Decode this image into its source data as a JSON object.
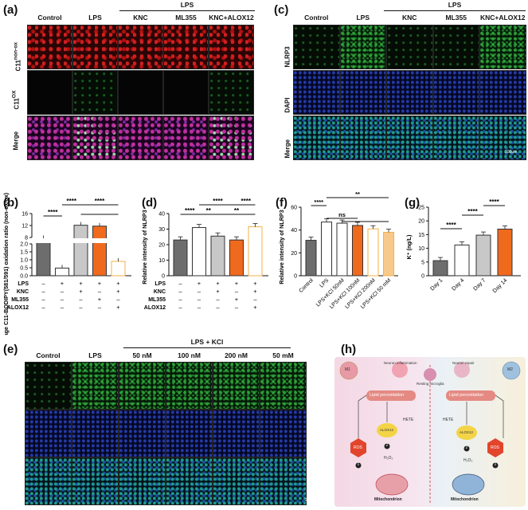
{
  "panels": {
    "a": {
      "label": "(a)",
      "group_header": "LPS",
      "columns": [
        "Control",
        "LPS",
        "KNC",
        "ML355",
        "KNC+ALOX12"
      ],
      "row_c11_base": "C11",
      "row_c11_sup1": "non-ox",
      "row_c11_sup2": "OX",
      "row3": "Merge"
    },
    "c": {
      "label": "(c)",
      "group_header": "LPS",
      "columns": [
        "Control",
        "LPS",
        "KNC",
        "ML355",
        "KNC+ALOX12"
      ],
      "rows": [
        "NLRP3",
        "DAPI",
        "Merge"
      ],
      "scalebar": "100μm"
    },
    "e": {
      "label": "(e)",
      "group_header": "LPS + KCl",
      "columns": [
        "Control",
        "LPS",
        "50 nM",
        "100 nM",
        "200 nM",
        "50 mM"
      ],
      "scalebar": "25μm"
    },
    "h": {
      "label": "(h)",
      "texts": {
        "m1": "M1",
        "m2": "M2",
        "neuron_inflam": "Neuron inflammation",
        "resting": "Resting microglia",
        "neuron_repair": "Neuron repair",
        "lipid_left": "Lipid peroxidation",
        "lipid_right": "Lipid peroxidation",
        "hete_left": "HETE",
        "hete_right": "HETE",
        "alox_left": "ALOX12",
        "alox_right": "ALOX12",
        "ros_left": "ROS",
        "ros_right": "ROS",
        "h2o2_left": "H₂O₂",
        "h2o2_right": "H₂O₂",
        "mito_left": "Mitochondrion",
        "mito_right": "Mitochondrion",
        "n1": "1",
        "n2": "2",
        "n3": "1",
        "n4": "2"
      }
    }
  },
  "chart_data": [
    {
      "id": "b",
      "label": "(b)",
      "type": "bar",
      "ylabel": "Average C11-BODIPY(581/591) oxidation ratio (non-ox/ox)",
      "yticks_upper": [
        "16",
        "12",
        "8"
      ],
      "yticks_lower": [
        "2.0",
        "1.5",
        "1.0",
        "0.5",
        "0.0"
      ],
      "values": [
        7.6,
        0.48,
        12.1,
        11.8,
        0.9
      ],
      "colors": [
        "#6d6d6d",
        "#ffffff",
        "#c8c8c8",
        "#f06a1e",
        "#ffffff"
      ],
      "edge": [
        "#333333",
        "#333333",
        "#333333",
        "#333333",
        "#f3b04a"
      ],
      "sig": [
        "****",
        "****",
        "****"
      ],
      "treat_rows": [
        {
          "name": "LPS",
          "marks": [
            "–",
            "+",
            "+",
            "+",
            "+"
          ]
        },
        {
          "name": "KNC",
          "marks": [
            "–",
            "–",
            "+",
            "–",
            "+"
          ]
        },
        {
          "name": "ML355",
          "marks": [
            "–",
            "–",
            "–",
            "+",
            "–"
          ]
        },
        {
          "name": "ALOX12",
          "marks": [
            "–",
            "–",
            "–",
            "–",
            "+"
          ]
        }
      ]
    },
    {
      "id": "d",
      "label": "(d)",
      "type": "bar",
      "ylabel": "Relative intensity of NLRP3",
      "yticks": [
        "0",
        "10",
        "20",
        "30",
        "40"
      ],
      "ylim": [
        0,
        40
      ],
      "values": [
        23,
        31,
        25.5,
        23,
        31.5
      ],
      "colors": [
        "#6d6d6d",
        "#ffffff",
        "#c8c8c8",
        "#f06a1e",
        "#ffffff"
      ],
      "edge": [
        "#333333",
        "#333333",
        "#333333",
        "#333333",
        "#f3b04a"
      ],
      "sig": [
        "****",
        "**",
        "****",
        "****",
        "**"
      ],
      "treat_rows": [
        {
          "name": "LPS",
          "marks": [
            "–",
            "+",
            "+",
            "+",
            "+"
          ]
        },
        {
          "name": "KNC",
          "marks": [
            "–",
            "–",
            "+",
            "–",
            "+"
          ]
        },
        {
          "name": "ML355",
          "marks": [
            "–",
            "–",
            "–",
            "+",
            "–"
          ]
        },
        {
          "name": "ALOX12",
          "marks": [
            "–",
            "–",
            "–",
            "–",
            "+"
          ]
        }
      ]
    },
    {
      "id": "f",
      "label": "(f)",
      "type": "bar",
      "ylabel": "Relative intensity of NLRP3",
      "yticks": [
        "0",
        "20",
        "40",
        "60"
      ],
      "ylim": [
        0,
        60
      ],
      "categories": [
        "Control",
        "LPS",
        "LPS+KCl 50nM",
        "LPS+KCl 100nM",
        "LPS+KCl 200nM",
        "LPS+KCl 50 mM"
      ],
      "values": [
        31,
        47,
        46,
        44,
        41,
        38
      ],
      "colors": [
        "#6d6d6d",
        "#ffffff",
        "#ffffff",
        "#f06a1e",
        "#ffffff",
        "#f8c98a"
      ],
      "edge": [
        "#333333",
        "#333333",
        "#333333",
        "#333333",
        "#f3b04a",
        "#f3b04a"
      ],
      "sig": [
        "****",
        "ns",
        "**"
      ]
    },
    {
      "id": "g",
      "label": "(g)",
      "type": "bar",
      "ylabel": "K⁺ (ng/L)",
      "yticks": [
        "0",
        "5",
        "10",
        "15",
        "20",
        "25"
      ],
      "ylim": [
        0,
        25
      ],
      "categories": [
        "Day 1",
        "Day 4",
        "Day 7",
        "Day 14"
      ],
      "values": [
        5.5,
        11.2,
        14.8,
        17.0
      ],
      "colors": [
        "#6d6d6d",
        "#ffffff",
        "#c8c8c8",
        "#f06a1e"
      ],
      "edge": [
        "#333333",
        "#333333",
        "#333333",
        "#333333"
      ],
      "sig": [
        "****",
        "****",
        "****"
      ]
    }
  ]
}
